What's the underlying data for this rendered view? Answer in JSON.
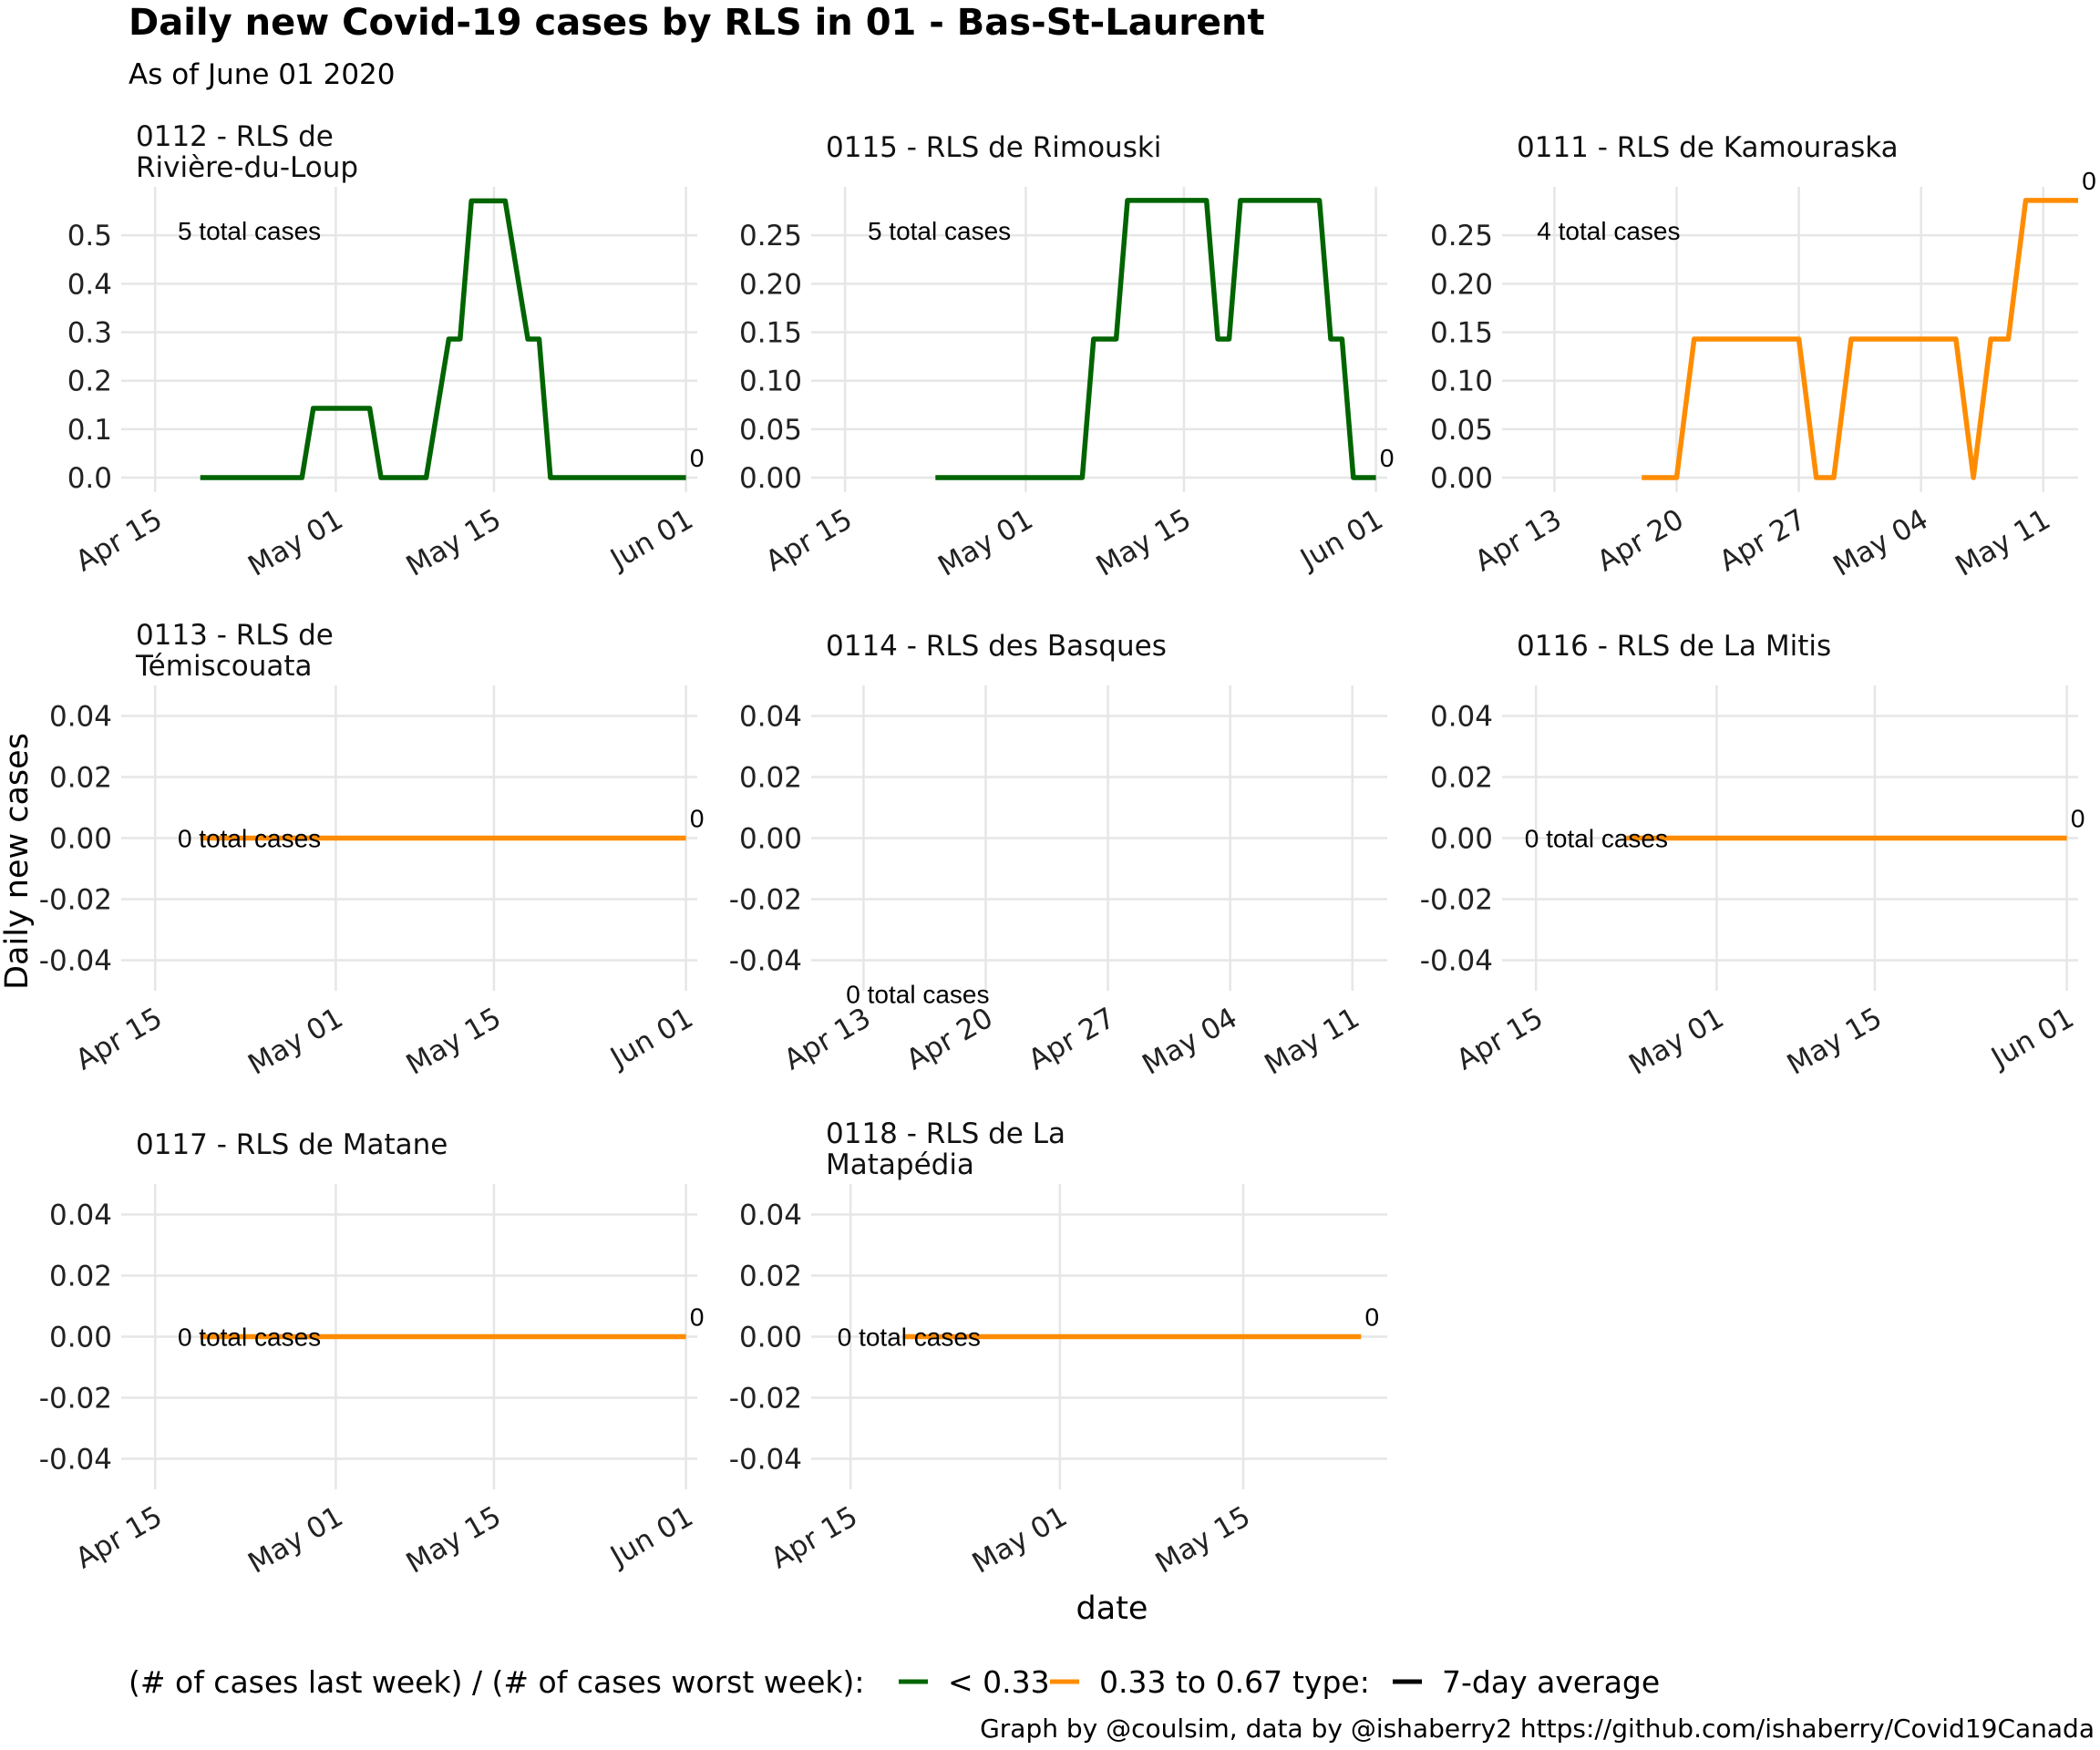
{
  "title": "Daily new Covid-19 cases by RLS in 01 - Bas-St-Laurent",
  "subtitle": "As of June 01 2020",
  "colors": {
    "low": "#006400",
    "mid": "#FF8C00",
    "avg": "#000000"
  },
  "chart_data": {
    "type": "line",
    "title": "Daily new Covid-19 cases by RLS in 01 - Bas-St-Laurent",
    "subtitle": "As of June 01 2020",
    "xlabel": "date",
    "ylabel": "Daily new cases",
    "legend": {
      "color_title": "(# of cases last week) / (# of cases worst week):",
      "color_items": [
        {
          "label": "< 0.33",
          "color": "#006400"
        },
        {
          "label": "0.33 to 0.67",
          "color": "#FF8C00"
        }
      ],
      "type_title": "type:",
      "type_items": [
        {
          "label": "7-day average",
          "color": "#000000"
        }
      ],
      "position": "bottom"
    },
    "caption": "Graph by @coulsim, data by @ishaberry2 https://github.com/ishaberry/Covid19Canada",
    "panels": [
      {
        "title": [
          "0112 - RLS de",
          "Rivière-du-Loup"
        ],
        "annotation": "5 total cases",
        "end_label": "0",
        "color": "#006400",
        "xlim": [
          "2020-04-12",
          "2020-06-02"
        ],
        "ylim": [
          -0.03,
          0.6
        ],
        "xticks": [
          {
            "date": "2020-04-15",
            "label": "Apr 15"
          },
          {
            "date": "2020-05-01",
            "label": "May 01"
          },
          {
            "date": "2020-05-15",
            "label": "May 15"
          },
          {
            "date": "2020-06-01",
            "label": "Jun 01"
          }
        ],
        "yticks": [
          {
            "v": 0,
            "label": "0.0"
          },
          {
            "v": 0.1,
            "label": "0.1"
          },
          {
            "v": 0.2,
            "label": "0.2"
          },
          {
            "v": 0.3,
            "label": "0.3"
          },
          {
            "v": 0.4,
            "label": "0.4"
          },
          {
            "v": 0.5,
            "label": "0.5"
          }
        ],
        "annotation_at": {
          "date": "2020-04-17",
          "v": 0.51
        },
        "points": [
          [
            "2020-04-19",
            0
          ],
          [
            "2020-04-28",
            0
          ],
          [
            "2020-04-29",
            0.143
          ],
          [
            "2020-05-04",
            0.143
          ],
          [
            "2020-05-05",
            0
          ],
          [
            "2020-05-09",
            0
          ],
          [
            "2020-05-11",
            0.286
          ],
          [
            "2020-05-12",
            0.286
          ],
          [
            "2020-05-13",
            0.571
          ],
          [
            "2020-05-16",
            0.571
          ],
          [
            "2020-05-18",
            0.286
          ],
          [
            "2020-05-19",
            0.286
          ],
          [
            "2020-05-20",
            0
          ],
          [
            "2020-06-01",
            0
          ]
        ]
      },
      {
        "title": [
          "0115 - RLS de Rimouski"
        ],
        "annotation": "5 total cases",
        "end_label": "0",
        "color": "#006400",
        "xlim": [
          "2020-04-12",
          "2020-06-02"
        ],
        "ylim": [
          -0.015,
          0.3
        ],
        "xticks": [
          {
            "date": "2020-04-15",
            "label": "Apr 15"
          },
          {
            "date": "2020-05-01",
            "label": "May 01"
          },
          {
            "date": "2020-05-15",
            "label": "May 15"
          },
          {
            "date": "2020-06-01",
            "label": "Jun 01"
          }
        ],
        "yticks": [
          {
            "v": 0,
            "label": "0.00"
          },
          {
            "v": 0.05,
            "label": "0.05"
          },
          {
            "v": 0.1,
            "label": "0.10"
          },
          {
            "v": 0.15,
            "label": "0.15"
          },
          {
            "v": 0.2,
            "label": "0.20"
          },
          {
            "v": 0.25,
            "label": "0.25"
          }
        ],
        "annotation_at": {
          "date": "2020-04-17",
          "v": 0.255
        },
        "points": [
          [
            "2020-04-23",
            0
          ],
          [
            "2020-05-06",
            0
          ],
          [
            "2020-05-07",
            0.143
          ],
          [
            "2020-05-09",
            0.143
          ],
          [
            "2020-05-10",
            0.286
          ],
          [
            "2020-05-17",
            0.286
          ],
          [
            "2020-05-18",
            0.143
          ],
          [
            "2020-05-19",
            0.143
          ],
          [
            "2020-05-20",
            0.286
          ],
          [
            "2020-05-27",
            0.286
          ],
          [
            "2020-05-28",
            0.143
          ],
          [
            "2020-05-29",
            0.143
          ],
          [
            "2020-05-30",
            0
          ],
          [
            "2020-06-01",
            0
          ]
        ]
      },
      {
        "title": [
          "0111 - RLS de Kamouraska"
        ],
        "annotation": "4 total cases",
        "end_label": "0",
        "color": "#FF8C00",
        "xlim": [
          "2020-04-10",
          "2020-05-13"
        ],
        "ylim": [
          -0.015,
          0.3
        ],
        "xticks": [
          {
            "date": "2020-04-13",
            "label": "Apr 13"
          },
          {
            "date": "2020-04-20",
            "label": "Apr 20"
          },
          {
            "date": "2020-04-27",
            "label": "Apr 27"
          },
          {
            "date": "2020-05-04",
            "label": "May 04"
          },
          {
            "date": "2020-05-11",
            "label": "May 11"
          }
        ],
        "yticks": [
          {
            "v": 0,
            "label": "0.00"
          },
          {
            "v": 0.05,
            "label": "0.05"
          },
          {
            "v": 0.1,
            "label": "0.10"
          },
          {
            "v": 0.15,
            "label": "0.15"
          },
          {
            "v": 0.2,
            "label": "0.20"
          },
          {
            "v": 0.25,
            "label": "0.25"
          }
        ],
        "annotation_at": {
          "date": "2020-04-12",
          "v": 0.255
        },
        "points": [
          [
            "2020-04-18",
            0
          ],
          [
            "2020-04-20",
            0
          ],
          [
            "2020-04-21",
            0.143
          ],
          [
            "2020-04-27",
            0.143
          ],
          [
            "2020-04-28",
            0
          ],
          [
            "2020-04-29",
            0
          ],
          [
            "2020-04-30",
            0.143
          ],
          [
            "2020-05-06",
            0.143
          ],
          [
            "2020-05-07",
            0
          ],
          [
            "2020-05-08",
            0.143
          ],
          [
            "2020-05-09",
            0.143
          ],
          [
            "2020-05-10",
            0.286
          ],
          [
            "2020-05-13",
            0.286
          ]
        ]
      },
      {
        "title": [
          "0113 - RLS de",
          "Témiscouata"
        ],
        "annotation": "0 total cases",
        "end_label": "0",
        "color": "#FF8C00",
        "xlim": [
          "2020-04-12",
          "2020-06-02"
        ],
        "ylim": [
          -0.05,
          0.05
        ],
        "xticks": [
          {
            "date": "2020-04-15",
            "label": "Apr 15"
          },
          {
            "date": "2020-05-01",
            "label": "May 01"
          },
          {
            "date": "2020-05-15",
            "label": "May 15"
          },
          {
            "date": "2020-06-01",
            "label": "Jun 01"
          }
        ],
        "yticks": [
          {
            "v": -0.04,
            "label": "-0.04"
          },
          {
            "v": -0.02,
            "label": "-0.02"
          },
          {
            "v": 0,
            "label": "0.00"
          },
          {
            "v": 0.02,
            "label": "0.02"
          },
          {
            "v": 0.04,
            "label": "0.04"
          }
        ],
        "annotation_at": {
          "date": "2020-04-17",
          "v": 0
        },
        "points": [
          [
            "2020-04-19",
            0
          ],
          [
            "2020-06-01",
            0
          ]
        ]
      },
      {
        "title": [
          "0114 - RLS des Basques"
        ],
        "annotation": "0 total cases",
        "end_label": "",
        "color": "#FF8C00",
        "xlim": [
          "2020-04-10",
          "2020-05-13"
        ],
        "ylim": [
          -0.05,
          0.05
        ],
        "xticks": [
          {
            "date": "2020-04-13",
            "label": "Apr 13"
          },
          {
            "date": "2020-04-20",
            "label": "Apr 20"
          },
          {
            "date": "2020-04-27",
            "label": "Apr 27"
          },
          {
            "date": "2020-05-04",
            "label": "May 04"
          },
          {
            "date": "2020-05-11",
            "label": "May 11"
          }
        ],
        "yticks": [
          {
            "v": -0.04,
            "label": "-0.04"
          },
          {
            "v": -0.02,
            "label": "-0.02"
          },
          {
            "v": 0,
            "label": "0.00"
          },
          {
            "v": 0.02,
            "label": "0.02"
          },
          {
            "v": 0.04,
            "label": "0.04"
          }
        ],
        "annotation_at": {
          "date": "2020-04-12",
          "v": -0.051
        },
        "points": []
      },
      {
        "title": [
          "0116 - RLS de La Mitis"
        ],
        "annotation": "0 total cases",
        "end_label": "0",
        "color": "#FF8C00",
        "xlim": [
          "2020-04-12",
          "2020-06-02"
        ],
        "ylim": [
          -0.05,
          0.05
        ],
        "xticks": [
          {
            "date": "2020-04-15",
            "label": "Apr 15"
          },
          {
            "date": "2020-05-01",
            "label": "May 01"
          },
          {
            "date": "2020-05-15",
            "label": "May 15"
          },
          {
            "date": "2020-06-01",
            "label": "Jun 01"
          }
        ],
        "yticks": [
          {
            "v": -0.04,
            "label": "-0.04"
          },
          {
            "v": -0.02,
            "label": "-0.02"
          },
          {
            "v": 0,
            "label": "0.00"
          },
          {
            "v": 0.02,
            "label": "0.02"
          },
          {
            "v": 0.04,
            "label": "0.04"
          }
        ],
        "annotation_at": {
          "date": "2020-04-14",
          "v": 0
        },
        "points": [
          [
            "2020-04-23",
            0
          ],
          [
            "2020-06-01",
            0
          ]
        ]
      },
      {
        "title": [
          "0117 - RLS de Matane"
        ],
        "annotation": "0 total cases",
        "end_label": "0",
        "color": "#FF8C00",
        "xlim": [
          "2020-04-12",
          "2020-06-02"
        ],
        "ylim": [
          -0.05,
          0.05
        ],
        "xticks": [
          {
            "date": "2020-04-15",
            "label": "Apr 15"
          },
          {
            "date": "2020-05-01",
            "label": "May 01"
          },
          {
            "date": "2020-05-15",
            "label": "May 15"
          },
          {
            "date": "2020-06-01",
            "label": "Jun 01"
          }
        ],
        "yticks": [
          {
            "v": -0.04,
            "label": "-0.04"
          },
          {
            "v": -0.02,
            "label": "-0.02"
          },
          {
            "v": 0,
            "label": "0.00"
          },
          {
            "v": 0.02,
            "label": "0.02"
          },
          {
            "v": 0.04,
            "label": "0.04"
          }
        ],
        "annotation_at": {
          "date": "2020-04-17",
          "v": 0
        },
        "points": [
          [
            "2020-04-19",
            0
          ],
          [
            "2020-06-01",
            0
          ]
        ]
      },
      {
        "title": [
          "0118 - RLS de La",
          "Matapédia"
        ],
        "annotation": "0 total cases",
        "end_label": "0",
        "color": "#FF8C00",
        "xlim": [
          "2020-04-12",
          "2020-05-26"
        ],
        "ylim": [
          -0.05,
          0.05
        ],
        "xticks": [
          {
            "date": "2020-04-15",
            "label": "Apr 15"
          },
          {
            "date": "2020-05-01",
            "label": "May 01"
          },
          {
            "date": "2020-05-15",
            "label": "May 15"
          }
        ],
        "yticks": [
          {
            "v": -0.04,
            "label": "-0.04"
          },
          {
            "v": -0.02,
            "label": "-0.02"
          },
          {
            "v": 0,
            "label": "0.00"
          },
          {
            "v": 0.02,
            "label": "0.02"
          },
          {
            "v": 0.04,
            "label": "0.04"
          }
        ],
        "annotation_at": {
          "date": "2020-04-14",
          "v": 0
        },
        "points": [
          [
            "2020-04-19",
            0
          ],
          [
            "2020-05-24",
            0
          ]
        ]
      }
    ]
  }
}
